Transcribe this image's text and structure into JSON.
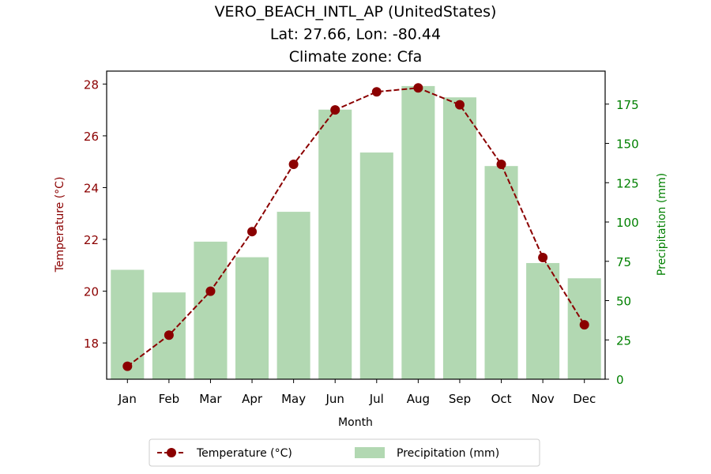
{
  "chart_data": {
    "type": "bar+line",
    "title_lines": [
      "VERO_BEACH_INTL_AP (UnitedStates)",
      "Lat: 27.66, Lon: -80.44",
      "Climate zone: Cfa"
    ],
    "xlabel": "Month",
    "categories": [
      "Jan",
      "Feb",
      "Mar",
      "Apr",
      "May",
      "Jun",
      "Jul",
      "Aug",
      "Sep",
      "Oct",
      "Nov",
      "Dec"
    ],
    "temperature": {
      "name": "Temperature (°C)",
      "axis_label": "Temperature (°C)",
      "values": [
        17.1,
        18.3,
        20.0,
        22.3,
        24.9,
        27.0,
        27.7,
        27.85,
        27.2,
        24.9,
        21.3,
        18.7
      ],
      "ylim": [
        16.6,
        28.5
      ],
      "ticks": [
        18,
        20,
        22,
        24,
        26,
        28
      ],
      "color": "#8b0000",
      "line_style": "dashed",
      "marker": "circle"
    },
    "precipitation": {
      "name": "Precipitation (mm)",
      "axis_label": "Precipitation (mm)",
      "values": [
        69.6,
        55.2,
        87.5,
        77.6,
        106.5,
        171.5,
        144.2,
        186.5,
        179.3,
        135.6,
        73.9,
        64.2
      ],
      "ylim": [
        0,
        196
      ],
      "ticks": [
        0,
        25,
        50,
        75,
        100,
        125,
        150,
        175
      ],
      "color": "#b2d8b2",
      "axis_color": "#008000"
    },
    "legend_placement": "bottom-center",
    "grid": false
  }
}
